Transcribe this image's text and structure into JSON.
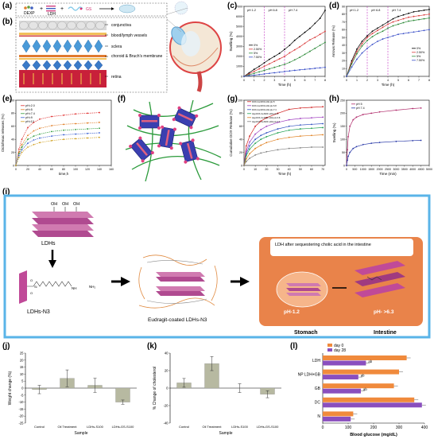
{
  "panel_labels": {
    "a": "(a)",
    "b": "(b)",
    "c": "(c)",
    "d": "(d)",
    "e": "(e)",
    "f": "(f)",
    "g": "(g)",
    "h": "(h)",
    "i": "(i)",
    "j": "(j)",
    "k": "(k)",
    "l": "(l)"
  },
  "panel_a": {
    "items": [
      "DEXP",
      "LDH",
      "GS"
    ]
  },
  "panel_b": {
    "layers": [
      "conjunctiva",
      "blood/lymph vessels",
      "sclera",
      "choroid & Bruch's membrane",
      "retina"
    ]
  },
  "panel_i": {
    "ldhs": "LDHs",
    "ldhs_n3": "LDHs-N3",
    "oh": "OH",
    "eudragit": "Eudragit-coated LDHs-N3",
    "stomach": "Stomach",
    "intestine": "Intestine",
    "ph_stomach": "pH-1.2",
    "ph_intestine": "pH- >6.3",
    "sequester": "LDH after sequestering cholic acid in the intestine"
  },
  "colors": {
    "frame_blue": "#5ab4e8",
    "bar_olive": "#b7b9a1",
    "day0": "#f08a3c",
    "day28": "#8a4fbe",
    "orange_bg": "#e9834a"
  },
  "chart_data": [
    {
      "type": "line",
      "id": "c",
      "ylabel": "Swelling (%)",
      "xlabel": "Time (h)",
      "xlim": [
        0,
        8
      ],
      "ylim": [
        0,
        7000
      ],
      "yticks": [
        0,
        1000,
        2000,
        3000,
        4000,
        5000,
        6000,
        7000
      ],
      "xticks": [
        0,
        1,
        2,
        3,
        4,
        5,
        6,
        7,
        8
      ],
      "annotations": [
        "pH 1.2",
        "pH 6.8",
        "pH 7.4"
      ],
      "series": [
        {
          "name": "0%",
          "color": "#000000",
          "x": [
            0,
            0.5,
            1,
            1.5,
            2,
            2.5,
            3,
            3.5,
            4,
            4.5,
            5,
            5.5,
            6,
            6.5,
            7,
            7.5,
            8
          ],
          "y": [
            0,
            350,
            700,
            1000,
            1350,
            1700,
            2000,
            2300,
            2700,
            3100,
            3600,
            4000,
            4400,
            4800,
            5300,
            5800,
            6600
          ]
        },
        {
          "name": "2.50%",
          "color": "#d93a3a",
          "x": [
            0,
            0.5,
            1,
            1.5,
            2,
            2.5,
            3,
            3.5,
            4,
            4.5,
            5,
            5.5,
            6,
            6.5,
            7,
            7.5,
            8
          ],
          "y": [
            0,
            250,
            500,
            750,
            1000,
            1250,
            1500,
            1750,
            2000,
            2350,
            2650,
            2950,
            3300,
            3650,
            3900,
            4200,
            4500
          ]
        },
        {
          "name": "5%",
          "color": "#2e8b3a",
          "x": [
            0,
            0.5,
            1,
            1.5,
            2,
            2.5,
            3,
            3.5,
            4,
            4.5,
            5,
            5.5,
            6,
            6.5,
            7,
            7.5,
            8
          ],
          "y": [
            0,
            150,
            300,
            450,
            600,
            750,
            900,
            1050,
            1200,
            1400,
            1650,
            1900,
            2200,
            2500,
            2800,
            3100,
            3400
          ]
        },
        {
          "name": "7.50%",
          "color": "#3a4fc8",
          "x": [
            0,
            0.5,
            1,
            1.5,
            2,
            2.5,
            3,
            3.5,
            4,
            4.5,
            5,
            5.5,
            6,
            6.5,
            7,
            7.5,
            8
          ],
          "y": [
            0,
            60,
            120,
            180,
            240,
            300,
            360,
            420,
            480,
            540,
            600,
            650,
            700,
            750,
            800,
            850,
            900
          ]
        }
      ]
    },
    {
      "type": "line",
      "id": "d",
      "ylabel": "Arrows Release (%)",
      "xlabel": "Time (h)",
      "xlim": [
        0,
        8
      ],
      "ylim": [
        0,
        90
      ],
      "yticks": [
        0,
        10,
        20,
        30,
        40,
        50,
        60,
        70,
        80,
        90
      ],
      "xticks": [
        0,
        1,
        2,
        3,
        4,
        5,
        6,
        7,
        8
      ],
      "annotations": [
        "pH 1.2",
        "pH 6.8",
        "pH 7.4"
      ],
      "series": [
        {
          "name": "0%",
          "color": "#000000",
          "x": [
            0,
            0.5,
            1,
            1.5,
            2,
            2.5,
            3,
            3.5,
            4,
            4.5,
            5,
            5.5,
            6,
            6.5,
            7,
            7.5,
            8
          ],
          "y": [
            0,
            20,
            35,
            45,
            52,
            58,
            62,
            66,
            70,
            74,
            77,
            79,
            81,
            83,
            84,
            85,
            86
          ]
        },
        {
          "name": "2.50%",
          "color": "#d93a3a",
          "x": [
            0,
            0.5,
            1,
            1.5,
            2,
            2.5,
            3,
            3.5,
            4,
            4.5,
            5,
            5.5,
            6,
            6.5,
            7,
            7.5,
            8
          ],
          "y": [
            0,
            18,
            32,
            42,
            50,
            55,
            59,
            63,
            67,
            70,
            72,
            74,
            76,
            77,
            78,
            79,
            80
          ]
        },
        {
          "name": "5%",
          "color": "#2e8b3a",
          "x": [
            0,
            0.5,
            1,
            1.5,
            2,
            2.5,
            3,
            3.5,
            4,
            4.5,
            5,
            5.5,
            6,
            6.5,
            7,
            7.5,
            8
          ],
          "y": [
            0,
            16,
            29,
            39,
            46,
            51,
            55,
            58,
            62,
            65,
            67,
            69,
            71,
            72,
            73,
            74,
            75
          ]
        },
        {
          "name": "7.50%",
          "color": "#3a4fc8",
          "x": [
            0,
            0.5,
            1,
            1.5,
            2,
            2.5,
            3,
            3.5,
            4,
            4.5,
            5,
            5.5,
            6,
            6.5,
            7,
            7.5,
            8
          ],
          "y": [
            0,
            12,
            22,
            30,
            36,
            41,
            45,
            48,
            50,
            52,
            54,
            55,
            56,
            57,
            58,
            59,
            60
          ]
        }
      ]
    },
    {
      "type": "line",
      "id": "e",
      "ylabel": "Diclofenac releases (%)",
      "xlabel": "time,h",
      "xlim": [
        0,
        160
      ],
      "ylim": [
        0,
        100
      ],
      "yticks": [
        0,
        20,
        40,
        60,
        80,
        100
      ],
      "xticks": [
        0,
        20,
        40,
        60,
        80,
        100,
        120,
        140,
        160
      ],
      "series": [
        {
          "name": "pH=2.0",
          "color": "#e03030",
          "x": [
            0,
            5,
            10,
            20,
            30,
            40,
            60,
            80,
            100,
            120,
            140
          ],
          "y": [
            0,
            25,
            40,
            58,
            66,
            71,
            75,
            77,
            79,
            80,
            81
          ]
        },
        {
          "name": "pH=5",
          "color": "#e07a20",
          "x": [
            0,
            5,
            10,
            20,
            30,
            40,
            60,
            80,
            100,
            120,
            140
          ],
          "y": [
            0,
            20,
            32,
            46,
            53,
            57,
            61,
            63,
            64,
            65,
            66
          ]
        },
        {
          "name": "pH=7.4",
          "color": "#2e9a3a",
          "x": [
            0,
            5,
            10,
            20,
            30,
            40,
            60,
            80,
            100,
            120,
            140
          ],
          "y": [
            0,
            18,
            28,
            40,
            45,
            48,
            52,
            54,
            55,
            56,
            57
          ]
        },
        {
          "name": "pH=9",
          "color": "#3a5fd0",
          "x": [
            0,
            5,
            10,
            20,
            30,
            40,
            60,
            80,
            100,
            120,
            140
          ],
          "y": [
            0,
            15,
            24,
            34,
            39,
            42,
            45,
            47,
            48,
            49,
            50
          ]
        },
        {
          "name": "pH=12",
          "color": "#d0a020",
          "x": [
            0,
            5,
            10,
            20,
            30,
            40,
            60,
            80,
            100,
            120,
            140
          ],
          "y": [
            0,
            12,
            20,
            28,
            32,
            35,
            38,
            40,
            41,
            42,
            43
          ]
        }
      ]
    },
    {
      "type": "line",
      "id": "g",
      "ylabel": "Cumulative DOX Release (%)",
      "xlabel": "Time (h)",
      "xlim": [
        0,
        72
      ],
      "ylim": [
        0,
        100
      ],
      "yticks": [
        0,
        20,
        40,
        60,
        80,
        100
      ],
      "xticks": [
        0,
        10,
        20,
        30,
        40,
        50,
        60,
        70
      ],
      "series": [
        {
          "name": "DOX-Ca MOF-LDH pH 5",
          "color": "#d02020",
          "x": [
            0,
            2,
            5,
            10,
            15,
            20,
            30,
            40,
            50,
            60,
            70
          ],
          "y": [
            0,
            30,
            45,
            60,
            68,
            73,
            80,
            86,
            88,
            89,
            90
          ]
        },
        {
          "name": "DOX-Ca MOF-LDH pH 6.8",
          "color": "#a040c0",
          "x": [
            0,
            2,
            5,
            10,
            15,
            20,
            30,
            40,
            50,
            60,
            70
          ],
          "y": [
            0,
            22,
            36,
            48,
            55,
            60,
            66,
            70,
            72,
            73,
            74
          ]
        },
        {
          "name": "DOX-Ca MOF-LDH pH 7.4",
          "color": "#3050c0",
          "x": [
            0,
            2,
            5,
            10,
            15,
            20,
            30,
            40,
            50,
            60,
            70
          ],
          "y": [
            0,
            18,
            30,
            40,
            46,
            50,
            56,
            60,
            62,
            63,
            64
          ]
        },
        {
          "name": "Alg-DOX-Ca MOF-LDH pH 5",
          "color": "#20a050",
          "x": [
            0,
            2,
            5,
            10,
            15,
            20,
            30,
            40,
            50,
            60,
            70
          ],
          "y": [
            0,
            15,
            25,
            34,
            40,
            44,
            50,
            54,
            56,
            57,
            58
          ]
        },
        {
          "name": "Alg-DOX-Ca MOF-LDH pH 6.8",
          "color": "#e08020",
          "x": [
            0,
            2,
            5,
            10,
            15,
            20,
            30,
            40,
            50,
            60,
            70
          ],
          "y": [
            0,
            10,
            18,
            26,
            31,
            35,
            40,
            43,
            45,
            46,
            47
          ]
        },
        {
          "name": "Alg-DOX-Ca MOF-LDH pH 7.4",
          "color": "#808080",
          "x": [
            0,
            2,
            5,
            10,
            15,
            20,
            30,
            40,
            50,
            60,
            70
          ],
          "y": [
            0,
            6,
            11,
            16,
            19,
            21,
            24,
            26,
            27,
            28,
            28
          ]
        }
      ]
    },
    {
      "type": "line",
      "id": "h",
      "ylabel": "Swelling (%)",
      "xlabel": "Time (min)",
      "xlim": [
        0,
        5000
      ],
      "ylim": [
        0,
        250
      ],
      "yticks": [
        0,
        50,
        100,
        150,
        200,
        250
      ],
      "xticks": [
        0,
        500,
        1000,
        1500,
        2000,
        2500,
        3000,
        3500,
        4000,
        4500,
        5000
      ],
      "series": [
        {
          "name": "pH 5",
          "color": "#b02a6a",
          "x": [
            0,
            50,
            100,
            200,
            400,
            600,
            1000,
            1500,
            2000,
            3000,
            4000,
            4500
          ],
          "y": [
            0,
            60,
            110,
            150,
            175,
            185,
            195,
            200,
            205,
            212,
            218,
            220
          ]
        },
        {
          "name": "pH 7.4",
          "color": "#2a3aa8",
          "x": [
            0,
            50,
            100,
            200,
            400,
            600,
            1000,
            1500,
            2000,
            3000,
            4000,
            4500
          ],
          "y": [
            0,
            20,
            35,
            50,
            65,
            72,
            80,
            85,
            88,
            92,
            95,
            96
          ]
        }
      ]
    },
    {
      "type": "bar",
      "id": "j",
      "ylabel": "Weight change (%)",
      "xlabel": "Sample",
      "categories": [
        "Control",
        "Oil Treatment",
        "LDHs-S100",
        "LDHs-GS-S100"
      ],
      "values": [
        -1,
        7,
        2,
        -10
      ],
      "errors": [
        3,
        6,
        5,
        1.5
      ],
      "ylim": [
        -25,
        25
      ],
      "yticks": [
        -25,
        -20,
        -15,
        -10,
        -5,
        0,
        5,
        10,
        15,
        20,
        25
      ]
    },
    {
      "type": "bar",
      "id": "k",
      "ylabel": "% Change of cholesterol",
      "xlabel": "Sample",
      "categories": [
        "Control",
        "Oil Treatment",
        "LDHs-S100",
        "LDHs-GS-S100"
      ],
      "values": [
        6,
        28,
        0,
        -7
      ],
      "errors": [
        5,
        8,
        5,
        4
      ],
      "ylim": [
        -40,
        40
      ],
      "yticks": [
        -40,
        -20,
        0,
        20,
        40
      ]
    },
    {
      "type": "bar",
      "id": "l",
      "orientation": "horizontal",
      "xlabel": "Blood glucose (mg/dL)",
      "categories": [
        "LDH",
        "NP LDH+GB",
        "GB",
        "DC",
        "N"
      ],
      "series": [
        {
          "name": "day 0",
          "color": "#f08a3c",
          "values": [
            330,
            300,
            280,
            360,
            120
          ]
        },
        {
          "name": "day 28",
          "color": "#8a4fbe",
          "values": [
            170,
            140,
            150,
            390,
            110
          ]
        }
      ],
      "annotations": [
        "ab",
        "ab",
        "ab"
      ],
      "xlim": [
        0,
        400
      ],
      "xticks": [
        0,
        100,
        200,
        300,
        400
      ]
    }
  ]
}
